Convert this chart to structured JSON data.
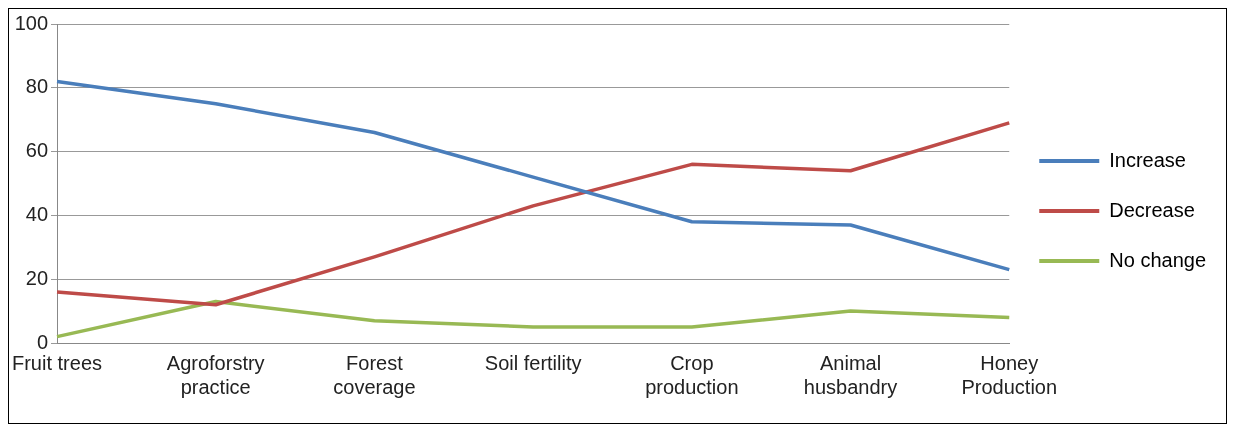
{
  "chart_data": {
    "type": "line",
    "categories": [
      "Fruit trees",
      "Agroforstry practice",
      "Forest coverage",
      "Soil fertility",
      "Crop production",
      "Animal husbandry",
      "Honey Production"
    ],
    "series": [
      {
        "name": "Increase",
        "color": "#4a7ebb",
        "values": [
          82,
          75,
          66,
          52,
          38,
          37,
          23
        ]
      },
      {
        "name": "Decrease",
        "color": "#be4b48",
        "values": [
          16,
          12,
          27,
          43,
          56,
          54,
          69
        ]
      },
      {
        "name": "No change",
        "color": "#98b954",
        "values": [
          2,
          13,
          7,
          5,
          5,
          10,
          8
        ]
      }
    ],
    "ylim": [
      0,
      100
    ],
    "yticks": [
      0,
      20,
      40,
      60,
      80,
      100
    ],
    "grid": "y",
    "legend": "right",
    "marker": "none",
    "line_style": "solid"
  }
}
